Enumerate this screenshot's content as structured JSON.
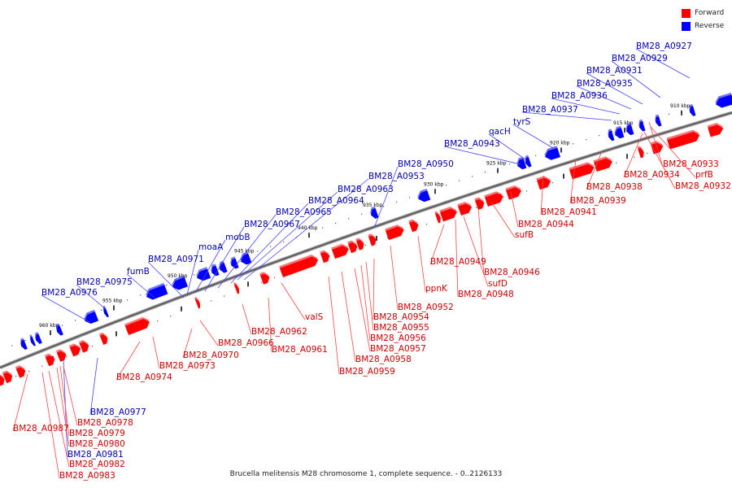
{
  "title": "Brucella melitensis M28 chromosome 1, complete sequence. - 0..2126133",
  "legend": {
    "forward_label": "Forward",
    "reverse_label": "Reverse",
    "forward_color": "#ff0000",
    "reverse_color": "#0000ff"
  },
  "colors": {
    "forward": "#ff0000",
    "reverse": "#0000ff",
    "label_forward": "#cc0000",
    "label_reverse": "#0000aa",
    "backbone": "#777777"
  },
  "kbp_ticks": [
    "910 kbp",
    "915 kbp",
    "920 kbp",
    "925 kbp",
    "930 kbp",
    "935 kbp",
    "940 kbp",
    "945 kbp",
    "950 kbp",
    "955 kbp",
    "960 kbp"
  ],
  "reverse_labels": [
    "BM28_A0927",
    "BM28_A0929",
    "BM28_A0931",
    "BM28_A0935",
    "BM28_A0936",
    "BM28_A0937",
    "tyrS",
    "qacH",
    "BM28_A0943",
    "BM28_A0950",
    "BM28_A0953",
    "BM28_A0963",
    "BM28_A0964",
    "BM28_A0965",
    "BM28_A0967",
    "mobB",
    "moaA",
    "BM28_A0971",
    "fumB",
    "BM28_A0975",
    "BM28_A0976",
    "BM28_A0977",
    "BM28_A0981"
  ],
  "forward_labels": [
    "BM28_A0933",
    "prfB",
    "BM28_A0932",
    "BM28_A0934",
    "BM28_A0938",
    "BM28_A0939",
    "BM28_A0941",
    "BM28_A0944",
    "sufB",
    "BM28_A0946",
    "sufD",
    "BM28_A0948",
    "BM28_A0949",
    "ppnK",
    "BM28_A0952",
    "BM28_A0954",
    "BM28_A0955",
    "BM28_A0956",
    "BM28_A0957",
    "BM28_A0958",
    "BM28_A0959",
    "valS",
    "BM28_A0961",
    "BM28_A0962",
    "BM28_A0966",
    "BM28_A0970",
    "BM28_A0973",
    "BM28_A0974",
    "BM28_A0987",
    "BM28_A0978",
    "BM28_A0979",
    "BM28_A0980",
    "BM28_A0982",
    "BM28_A0983"
  ]
}
